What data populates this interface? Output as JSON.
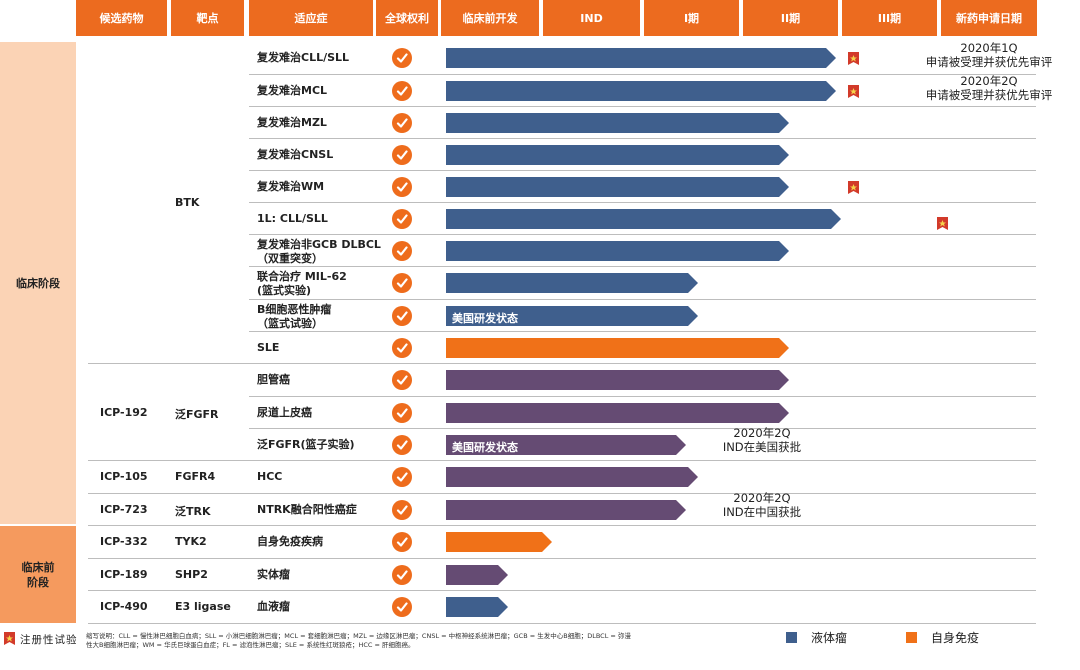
{
  "headers": [
    "候选药物",
    "靶点",
    "适应症",
    "全球权利",
    "临床前开发",
    "IND",
    "I期",
    "II期",
    "III期",
    "新药申请日期"
  ],
  "stages": {
    "clinical": "临床阶段",
    "preclinical": "临床前\n阶段"
  },
  "groups": [
    {
      "drug": "",
      "target": "BTK"
    },
    {
      "drug": "ICP-192",
      "target": "泛FGFR"
    },
    {
      "drug": "ICP-105",
      "target": "FGFR4"
    },
    {
      "drug": "ICP-723",
      "target": "泛TRK"
    },
    {
      "drug": "ICP-332",
      "target": "TYK2"
    },
    {
      "drug": "ICP-189",
      "target": "SHP2"
    },
    {
      "drug": "ICP-490",
      "target": "E3 ligase"
    }
  ],
  "rows": [
    {
      "indication": "复发难治CLL/SLL",
      "progress": 0.86,
      "color": "blue",
      "flag": "III期",
      "label": "",
      "note": "2020年1Q\n申请被受理并获优先审评"
    },
    {
      "indication": "复发难治MCL",
      "progress": 0.86,
      "color": "blue",
      "flag": "III期",
      "label": "",
      "note": "2020年2Q\n申请被受理并获优先审评"
    },
    {
      "indication": "复发难治MZL",
      "progress": 0.75,
      "color": "blue",
      "flag": "",
      "label": "",
      "note": ""
    },
    {
      "indication": "复发难治CNSL",
      "progress": 0.75,
      "color": "blue",
      "flag": "",
      "label": "",
      "note": ""
    },
    {
      "indication": "复发难治WM",
      "progress": 0.75,
      "color": "blue",
      "flag": "III期",
      "label": "",
      "note": ""
    },
    {
      "indication": "1L: CLL/SLL",
      "progress": 0.87,
      "color": "blue",
      "flag": "新药申请日期",
      "label": "",
      "note": ""
    },
    {
      "indication": "复发难治非GCB DLBCL\n（双重突变）",
      "progress": 0.75,
      "color": "blue",
      "flag": "",
      "label": "",
      "note": ""
    },
    {
      "indication": "联合治疗 MIL-62\n(篮式实验)",
      "progress": 0.54,
      "color": "blue",
      "flag": "",
      "label": "",
      "note": ""
    },
    {
      "indication": "B细胞恶性肿瘤\n（篮式试验）",
      "progress": 0.54,
      "color": "blue",
      "flag": "",
      "label": "美国研发状态",
      "note": ""
    },
    {
      "indication": "SLE",
      "progress": 0.75,
      "color": "orange",
      "flag": "",
      "label": "",
      "note": ""
    },
    {
      "indication": "胆管癌",
      "progress": 0.75,
      "color": "purple",
      "flag": "",
      "label": "",
      "note": ""
    },
    {
      "indication": "尿道上皮癌",
      "progress": 0.75,
      "color": "purple",
      "flag": "",
      "label": "",
      "note": ""
    },
    {
      "indication": "泛FGFR(篮子实验)",
      "progress": 0.51,
      "color": "purple",
      "flag": "",
      "label": "美国研发状态",
      "note": "2020年2Q\nIND在美国获批"
    },
    {
      "indication": "HCC",
      "progress": 0.54,
      "color": "purple",
      "flag": "",
      "label": "",
      "note": ""
    },
    {
      "indication": "NTRK融合阳性癌症",
      "progress": 0.51,
      "color": "purple",
      "flag": "",
      "label": "",
      "note": "2020年2Q\nIND在中国获批"
    },
    {
      "indication": "自身免疫疾病",
      "progress": 0.22,
      "color": "orange",
      "flag": "",
      "label": "",
      "note": ""
    },
    {
      "indication": "实体瘤",
      "progress": 0.12,
      "color": "purple",
      "flag": "",
      "label": "",
      "note": ""
    },
    {
      "indication": "血液瘤",
      "progress": 0.12,
      "color": "blue",
      "flag": "",
      "label": "",
      "note": ""
    }
  ],
  "colors": {
    "blue": "#3f5f8d",
    "purple": "#654b73",
    "orange": "#f07118",
    "accent": "#ec6b1f",
    "check": "#ee6c1c"
  },
  "footer": {
    "flag_legend": "注册性试验",
    "abbrev": "缩写说明：CLL = 慢性淋巴细胞白血病；SLL = 小淋巴细胞淋巴瘤；MCL = 套细胞淋巴瘤；MZL = 边缘区淋巴瘤；CNSL = 中枢神经系统淋巴瘤；GCB = 生发中心B细胞；DLBCL = 弥漫性大B细胞淋巴瘤；WM = 华氏巨球蛋白血症；FL = 滤泡性淋巴瘤；SLE = 系统性红斑狼疮；HCC = 肝细胞癌。",
    "legend_blue": "液体瘤",
    "legend_orange": "自身免疫"
  }
}
